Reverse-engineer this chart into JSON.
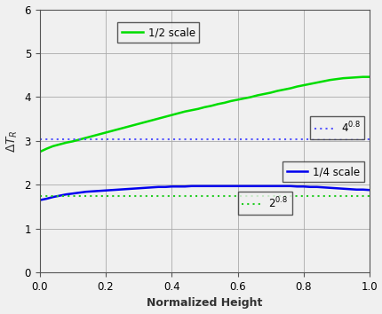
{
  "xlim": [
    0,
    1.0
  ],
  "ylim": [
    0,
    6
  ],
  "xticks": [
    0.0,
    0.2,
    0.4,
    0.6,
    0.8,
    1.0
  ],
  "yticks": [
    0,
    1,
    2,
    3,
    4,
    5,
    6
  ],
  "xlabel": "Normalized Height",
  "ylabel": "ΔT_R",
  "grid": true,
  "half_scale_color": "#00dd00",
  "quarter_scale_color": "#0000ee",
  "ref_4_color": "#5555ff",
  "ref_2_color": "#22cc22",
  "ref_4_value": 3.031,
  "ref_2_value": 1.741,
  "legend_half_label": "1/2 scale",
  "legend_quarter_label": "1/4 scale",
  "bg_color": "#f0f0f0",
  "half_scale_x": [
    0.0,
    0.02,
    0.04,
    0.06,
    0.08,
    0.1,
    0.12,
    0.14,
    0.16,
    0.18,
    0.2,
    0.22,
    0.24,
    0.26,
    0.28,
    0.3,
    0.32,
    0.34,
    0.36,
    0.38,
    0.4,
    0.42,
    0.44,
    0.46,
    0.48,
    0.5,
    0.52,
    0.54,
    0.56,
    0.58,
    0.6,
    0.62,
    0.64,
    0.66,
    0.68,
    0.7,
    0.72,
    0.74,
    0.76,
    0.78,
    0.8,
    0.82,
    0.84,
    0.86,
    0.88,
    0.9,
    0.92,
    0.94,
    0.96,
    0.98,
    1.0
  ],
  "half_scale_y": [
    2.75,
    2.82,
    2.88,
    2.92,
    2.96,
    2.99,
    3.03,
    3.07,
    3.11,
    3.15,
    3.19,
    3.23,
    3.27,
    3.31,
    3.35,
    3.39,
    3.43,
    3.47,
    3.51,
    3.55,
    3.59,
    3.63,
    3.67,
    3.7,
    3.73,
    3.77,
    3.8,
    3.84,
    3.87,
    3.91,
    3.94,
    3.97,
    4.0,
    4.04,
    4.07,
    4.1,
    4.14,
    4.17,
    4.2,
    4.24,
    4.27,
    4.3,
    4.33,
    4.36,
    4.39,
    4.41,
    4.43,
    4.44,
    4.45,
    4.46,
    4.46
  ],
  "quarter_scale_x": [
    0.0,
    0.02,
    0.04,
    0.06,
    0.08,
    0.1,
    0.12,
    0.14,
    0.16,
    0.18,
    0.2,
    0.22,
    0.24,
    0.26,
    0.28,
    0.3,
    0.32,
    0.34,
    0.36,
    0.38,
    0.4,
    0.42,
    0.44,
    0.46,
    0.48,
    0.5,
    0.52,
    0.54,
    0.56,
    0.58,
    0.6,
    0.62,
    0.64,
    0.66,
    0.68,
    0.7,
    0.72,
    0.74,
    0.76,
    0.78,
    0.8,
    0.82,
    0.84,
    0.86,
    0.88,
    0.9,
    0.92,
    0.94,
    0.96,
    0.98,
    1.0
  ],
  "quarter_scale_y": [
    1.65,
    1.68,
    1.72,
    1.75,
    1.78,
    1.8,
    1.82,
    1.84,
    1.85,
    1.86,
    1.87,
    1.88,
    1.89,
    1.9,
    1.91,
    1.92,
    1.93,
    1.94,
    1.95,
    1.95,
    1.96,
    1.96,
    1.96,
    1.97,
    1.97,
    1.97,
    1.97,
    1.97,
    1.97,
    1.97,
    1.97,
    1.97,
    1.97,
    1.97,
    1.97,
    1.97,
    1.97,
    1.97,
    1.97,
    1.96,
    1.96,
    1.95,
    1.95,
    1.94,
    1.93,
    1.92,
    1.91,
    1.9,
    1.89,
    1.89,
    1.88
  ],
  "figsize": [
    4.31,
    3.54
  ],
  "dpi": 100
}
